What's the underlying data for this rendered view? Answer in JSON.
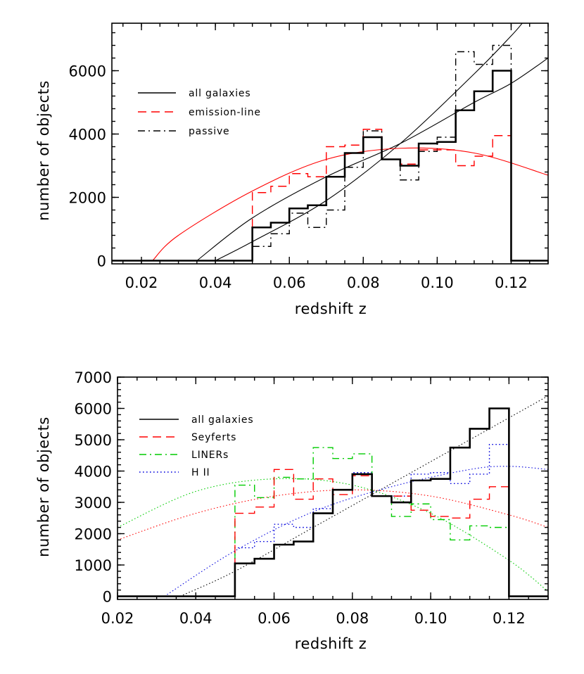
{
  "chart_data": [
    {
      "type": "line",
      "xlabel": "redshift z",
      "ylabel": "number of objects",
      "xlim": [
        0.012,
        0.13
      ],
      "ylim": [
        -100,
        7500
      ],
      "xticks": [
        0.02,
        0.04,
        0.06,
        0.08,
        0.1,
        0.12
      ],
      "xtick_labels": [
        "0.02",
        "0.04",
        "0.06",
        "0.08",
        "0.10",
        "0.12"
      ],
      "yticks": [
        0,
        2000,
        4000,
        6000
      ],
      "ytick_labels": [
        "0",
        "2000",
        "4000",
        "6000"
      ],
      "legend_position": "top-left",
      "bin_edges": [
        0.05,
        0.055,
        0.06,
        0.065,
        0.07,
        0.075,
        0.08,
        0.085,
        0.09,
        0.095,
        0.1,
        0.105,
        0.11,
        0.115,
        0.12
      ],
      "series": [
        {
          "name": "all galaxies",
          "style": "solid",
          "color": "#000000",
          "width": 2.6,
          "values": [
            1050,
            1200,
            1650,
            1750,
            2650,
            3400,
            3900,
            3200,
            3000,
            3700,
            3750,
            4750,
            5350,
            6000
          ]
        },
        {
          "name": "emission-line",
          "style": "dashed",
          "color": "#ff0000",
          "width": 1.4,
          "values": [
            2150,
            2350,
            2750,
            2650,
            3600,
            3650,
            4150,
            3200,
            3050,
            3500,
            3500,
            3000,
            3300,
            3950
          ]
        },
        {
          "name": "passive",
          "style": "dashdot",
          "color": "#000000",
          "width": 1.4,
          "values": [
            450,
            850,
            1500,
            1050,
            1600,
            2950,
            4100,
            3200,
            2550,
            3450,
            3900,
            6600,
            6200,
            6800
          ]
        }
      ],
      "fits": [
        {
          "color": "#000000",
          "points": [
            [
              0.035,
              0
            ],
            [
              0.05,
              1350
            ],
            [
              0.07,
              2650
            ],
            [
              0.09,
              3700
            ],
            [
              0.11,
              5000
            ],
            [
              0.12,
              5600
            ],
            [
              0.13,
              6400
            ]
          ]
        },
        {
          "color": "#000000",
          "points": [
            [
              0.04,
              0
            ],
            [
              0.05,
              600
            ],
            [
              0.07,
              1900
            ],
            [
              0.09,
              3700
            ],
            [
              0.11,
              5900
            ],
            [
              0.12,
              7100
            ],
            [
              0.123,
              7500
            ]
          ]
        },
        {
          "color": "#ff0000",
          "points": [
            [
              0.023,
              0
            ],
            [
              0.03,
              800
            ],
            [
              0.05,
              2200
            ],
            [
              0.07,
              3200
            ],
            [
              0.09,
              3550
            ],
            [
              0.11,
              3400
            ],
            [
              0.13,
              2700
            ]
          ]
        }
      ]
    },
    {
      "type": "line",
      "xlabel": "redshift z",
      "ylabel": "number of objects",
      "xlim": [
        0.02,
        0.13
      ],
      "ylim": [
        -100,
        7000
      ],
      "xticks": [
        0.02,
        0.04,
        0.06,
        0.08,
        0.1,
        0.12
      ],
      "xtick_labels": [
        "0.02",
        "0.04",
        "0.06",
        "0.08",
        "0.10",
        "0.12"
      ],
      "yticks": [
        0,
        1000,
        2000,
        3000,
        4000,
        5000,
        6000,
        7000
      ],
      "ytick_labels": [
        "0",
        "1000",
        "2000",
        "3000",
        "4000",
        "5000",
        "6000",
        "7000"
      ],
      "legend_position": "top-left",
      "bin_edges": [
        0.05,
        0.055,
        0.06,
        0.065,
        0.07,
        0.075,
        0.08,
        0.085,
        0.09,
        0.095,
        0.1,
        0.105,
        0.11,
        0.115,
        0.12
      ],
      "series": [
        {
          "name": "all galaxies",
          "style": "solid",
          "color": "#000000",
          "width": 2.6,
          "values": [
            1050,
            1200,
            1650,
            1750,
            2650,
            3400,
            3900,
            3200,
            3000,
            3700,
            3750,
            4750,
            5350,
            6000
          ]
        },
        {
          "name": "Seyferts",
          "style": "dashed",
          "color": "#ff0000",
          "width": 1.4,
          "values": [
            2650,
            2850,
            4050,
            3100,
            3750,
            3250,
            3850,
            3200,
            3200,
            2750,
            2550,
            2500,
            3100,
            3500
          ]
        },
        {
          "name": "LINERs",
          "style": "dashdot",
          "color": "#00cc00",
          "width": 1.4,
          "values": [
            3550,
            3150,
            3800,
            3750,
            4750,
            4400,
            4550,
            3200,
            2550,
            2950,
            2450,
            1800,
            2250,
            2200
          ]
        },
        {
          "name": "H II",
          "style": "dotted",
          "color": "#0000dd",
          "width": 1.4,
          "values": [
            1550,
            1750,
            2300,
            2200,
            2800,
            3400,
            3950,
            3200,
            3200,
            3900,
            3950,
            3600,
            3900,
            4850
          ]
        }
      ],
      "fits": [
        {
          "color": "#000000",
          "points": [
            [
              0.036,
              0
            ],
            [
              0.05,
              800
            ],
            [
              0.07,
              2200
            ],
            [
              0.09,
              3600
            ],
            [
              0.11,
              5000
            ],
            [
              0.13,
              6400
            ]
          ]
        },
        {
          "color": "#0000dd",
          "points": [
            [
              0.032,
              0
            ],
            [
              0.05,
              1450
            ],
            [
              0.07,
              2700
            ],
            [
              0.09,
              3500
            ],
            [
              0.11,
              4050
            ],
            [
              0.12,
              4150
            ],
            [
              0.13,
              4050
            ]
          ]
        },
        {
          "color": "#ff0000",
          "points": [
            [
              0.02,
              1800
            ],
            [
              0.04,
              2650
            ],
            [
              0.06,
              3200
            ],
            [
              0.08,
              3400
            ],
            [
              0.1,
              3200
            ],
            [
              0.12,
              2600
            ],
            [
              0.13,
              2200
            ]
          ]
        },
        {
          "color": "#00cc00",
          "points": [
            [
              0.02,
              2200
            ],
            [
              0.04,
              3350
            ],
            [
              0.06,
              3750
            ],
            [
              0.08,
              3550
            ],
            [
              0.1,
              2650
            ],
            [
              0.12,
              1150
            ],
            [
              0.13,
              150
            ]
          ]
        }
      ]
    }
  ]
}
